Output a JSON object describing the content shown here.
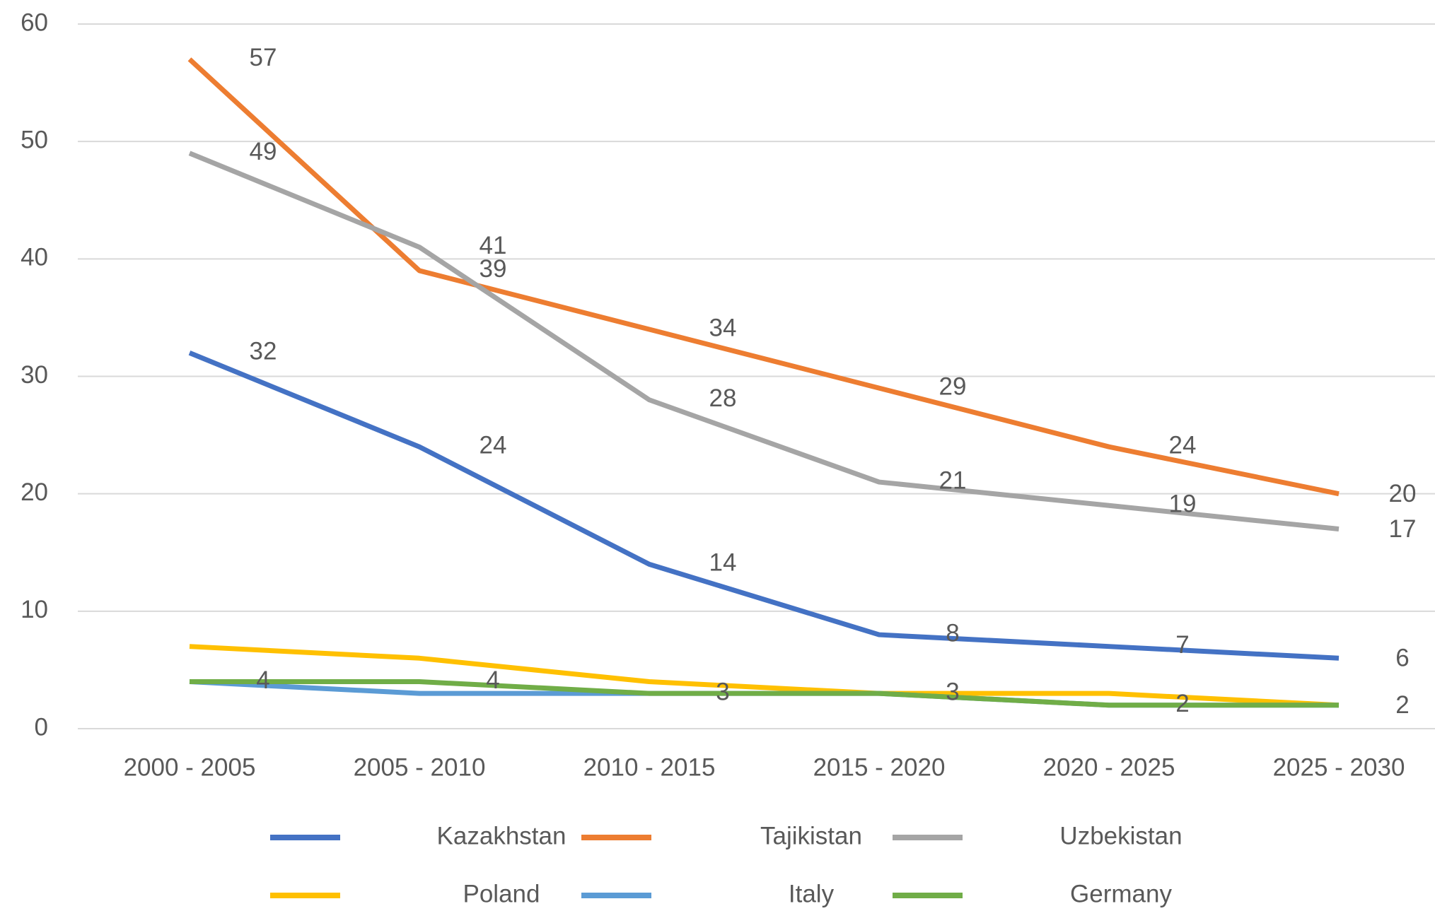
{
  "chart_data": {
    "type": "line",
    "categories": [
      "2000 - 2005",
      "2005 - 2010",
      "2010 - 2015",
      "2015 - 2020",
      "2020 - 2025",
      "2025 - 2030"
    ],
    "series": [
      {
        "name": "Kazakhstan",
        "color": "#4472c4",
        "values": [
          32,
          24,
          14,
          8,
          7,
          6
        ],
        "data_labels": true
      },
      {
        "name": "Tajikistan",
        "color": "#ed7d31",
        "values": [
          57,
          39,
          34,
          29,
          24,
          20
        ],
        "data_labels": true
      },
      {
        "name": "Uzbekistan",
        "color": "#a5a5a5",
        "values": [
          49,
          41,
          28,
          21,
          19,
          17
        ],
        "data_labels": true
      },
      {
        "name": "Poland",
        "color": "#ffc000",
        "values": [
          7,
          6,
          4,
          3,
          3,
          2
        ],
        "data_labels": false
      },
      {
        "name": "Italy",
        "color": "#5b9bd5",
        "values": [
          4,
          3,
          3,
          3,
          2,
          2
        ],
        "data_labels": false
      },
      {
        "name": "Germany",
        "color": "#70ad47",
        "values": [
          4,
          4,
          3,
          3,
          2,
          2
        ],
        "data_labels": true
      }
    ],
    "ylim": [
      0,
      60
    ],
    "yticks": [
      0,
      10,
      20,
      30,
      40,
      50,
      60
    ],
    "grid": true,
    "legend": "bottom"
  }
}
